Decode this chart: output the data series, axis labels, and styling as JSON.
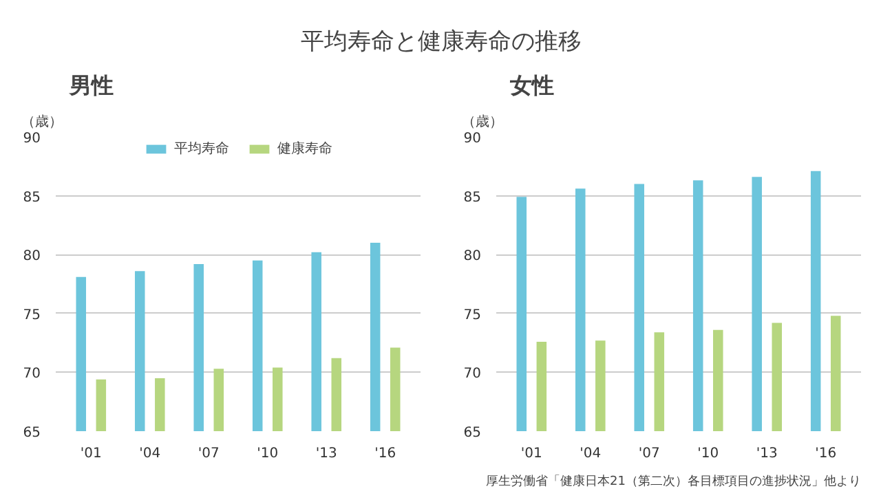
{
  "chart_data": [
    {
      "type": "bar",
      "title": "平均寿命と健康寿命の推移",
      "subtitle": "男性",
      "ylabel": "（歳）",
      "categories": [
        "'01",
        "'04",
        "'07",
        "'10",
        "'13",
        "'16"
      ],
      "ylim": [
        65,
        90
      ],
      "yticks": [
        65,
        70,
        75,
        80,
        85,
        90
      ],
      "grid": "y",
      "legend": "top",
      "series": [
        {
          "name": "平均寿命",
          "color": "#6cc5dc",
          "values": [
            78.1,
            78.6,
            79.2,
            79.5,
            80.2,
            81.0
          ]
        },
        {
          "name": "健康寿命",
          "color": "#b6d67f",
          "values": [
            69.4,
            69.5,
            70.3,
            70.4,
            71.2,
            72.1
          ]
        }
      ]
    },
    {
      "type": "bar",
      "subtitle": "女性",
      "ylabel": "（歳）",
      "categories": [
        "'01",
        "'04",
        "'07",
        "'10",
        "'13",
        "'16"
      ],
      "ylim": [
        65,
        90
      ],
      "yticks": [
        65,
        70,
        75,
        80,
        85,
        90
      ],
      "grid": "y",
      "annotations": [
        "厚生労働省「健康日本21（第二次）各目標項目の進捗状況」他より"
      ],
      "series": [
        {
          "color": "#6cc5dc",
          "values": [
            84.9,
            85.6,
            86.0,
            86.3,
            86.6,
            87.1
          ]
        },
        {
          "color": "#b6d67f",
          "values": [
            72.6,
            72.7,
            73.4,
            73.6,
            74.2,
            74.8
          ]
        }
      ]
    }
  ]
}
